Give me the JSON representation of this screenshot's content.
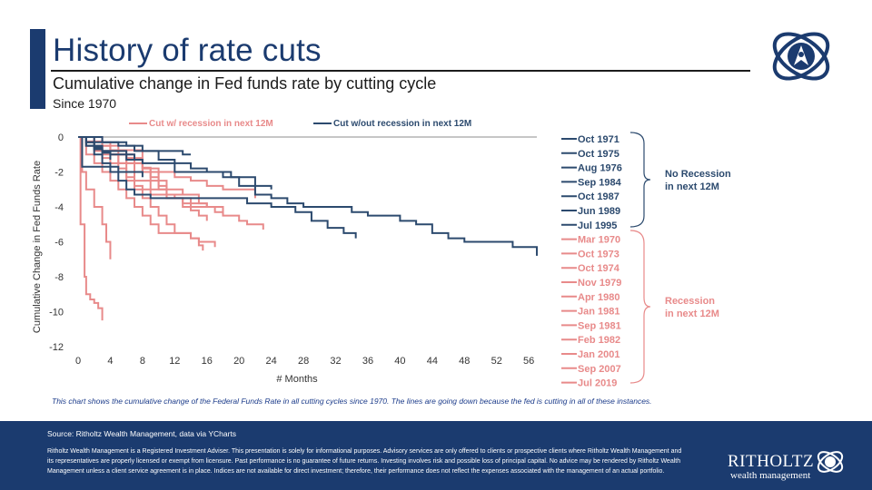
{
  "header": {
    "title": "History of rate cuts",
    "subtitle": "Cumulative change in Fed funds rate by cutting cycle",
    "since": "Since 1970"
  },
  "colors": {
    "navy": "#1b3b6f",
    "recession": "#e88a8a",
    "no_recession": "#2c4a6e",
    "zero_line": "#b4b4b4"
  },
  "chart_data": {
    "type": "line",
    "title": "History of rate cuts",
    "xlabel": "# Months",
    "ylabel": "Cumulative Change in Fed Funds Rate",
    "xlim": [
      0,
      57
    ],
    "ylim": [
      -12,
      0
    ],
    "xticks": [
      0,
      4,
      8,
      12,
      16,
      20,
      24,
      28,
      32,
      36,
      40,
      44,
      48,
      52,
      56
    ],
    "yticks": [
      0,
      -2,
      -4,
      -6,
      -8,
      -10,
      -12
    ],
    "legend": [
      {
        "label": "Cut w/ recession in next 12M",
        "group": "recession"
      },
      {
        "label": "Cut w/out recession in next 12M",
        "group": "no_recession"
      }
    ],
    "groups": {
      "no_recession": {
        "label": "No Recession in next 12M"
      },
      "recession": {
        "label": "Recession in next 12M"
      }
    },
    "series": [
      {
        "name": "Oct 1971",
        "group": "no_recession",
        "points": [
          [
            0,
            0
          ],
          [
            1,
            -0.3
          ],
          [
            2,
            -0.6
          ],
          [
            3,
            -0.9
          ],
          [
            4,
            -1.3
          ]
        ]
      },
      {
        "name": "Oct 1975",
        "group": "no_recession",
        "points": [
          [
            0,
            0
          ],
          [
            1,
            -0.3
          ],
          [
            2,
            -0.5
          ],
          [
            3,
            -0.8
          ],
          [
            4,
            -1.0
          ],
          [
            5,
            -1.0
          ],
          [
            6,
            -1.3
          ],
          [
            8,
            -1.5
          ],
          [
            10,
            -1.5
          ],
          [
            12,
            -2.0
          ],
          [
            16,
            -2.0
          ],
          [
            19,
            -2.3
          ],
          [
            22,
            -2.8
          ],
          [
            24,
            -3.0
          ]
        ]
      },
      {
        "name": "Aug 1976",
        "group": "no_recession",
        "points": [
          [
            0,
            0
          ],
          [
            0.5,
            -1.7
          ],
          [
            1,
            -1.7
          ],
          [
            4,
            -1.7
          ],
          [
            5,
            -2.0
          ],
          [
            7,
            -2.0
          ],
          [
            8,
            -2.3
          ]
        ]
      },
      {
        "name": "Sep 1984",
        "group": "no_recession",
        "points": [
          [
            0,
            0
          ],
          [
            1,
            -0.5
          ],
          [
            2,
            -1.0
          ],
          [
            3,
            -1.5
          ],
          [
            4,
            -2.0
          ],
          [
            5,
            -2.5
          ],
          [
            6,
            -3.0
          ],
          [
            7,
            -3.3
          ],
          [
            9,
            -3.5
          ],
          [
            12,
            -3.5
          ],
          [
            16,
            -3.5
          ],
          [
            18,
            -3.5
          ],
          [
            20,
            -3.5
          ],
          [
            21,
            -3.8
          ],
          [
            24,
            -4.0
          ],
          [
            27,
            -4.3
          ],
          [
            29,
            -4.8
          ],
          [
            31,
            -5.2
          ],
          [
            33,
            -5.5
          ],
          [
            34,
            -5.5
          ],
          [
            34.5,
            -5.8
          ]
        ]
      },
      {
        "name": "Oct 1987",
        "group": "no_recession",
        "points": [
          [
            0,
            0
          ],
          [
            1,
            -0.5
          ],
          [
            2,
            -0.7
          ],
          [
            3,
            -0.8
          ],
          [
            5,
            -0.8
          ],
          [
            6,
            -1.0
          ],
          [
            7,
            -1.3
          ],
          [
            8,
            -1.3
          ]
        ]
      },
      {
        "name": "Jun 1989",
        "group": "no_recession",
        "points": [
          [
            0,
            0
          ],
          [
            2,
            -0.3
          ],
          [
            4,
            -0.3
          ],
          [
            6,
            -0.5
          ],
          [
            8,
            -0.8
          ],
          [
            10,
            -1.3
          ],
          [
            12,
            -1.5
          ],
          [
            14,
            -1.8
          ],
          [
            16,
            -2.0
          ],
          [
            18,
            -2.3
          ],
          [
            20,
            -2.8
          ],
          [
            22,
            -3.3
          ],
          [
            24,
            -3.5
          ],
          [
            26,
            -3.8
          ],
          [
            28,
            -4.0
          ],
          [
            30,
            -4.0
          ],
          [
            32,
            -4.0
          ],
          [
            34,
            -4.3
          ],
          [
            36,
            -4.5
          ],
          [
            38,
            -4.5
          ],
          [
            40,
            -4.8
          ],
          [
            42,
            -5.0
          ],
          [
            44,
            -5.5
          ],
          [
            46,
            -5.8
          ],
          [
            48,
            -6.0
          ],
          [
            51,
            -6.0
          ],
          [
            54,
            -6.3
          ],
          [
            57,
            -6.5
          ],
          [
            57,
            -6.8
          ]
        ]
      },
      {
        "name": "Jul 1995",
        "group": "no_recession",
        "points": [
          [
            0,
            0
          ],
          [
            2,
            0
          ],
          [
            3,
            -0.3
          ],
          [
            5,
            -0.5
          ],
          [
            7,
            -0.8
          ],
          [
            10,
            -0.8
          ],
          [
            12,
            -0.8
          ],
          [
            13,
            -1.0
          ],
          [
            14,
            -1.0
          ]
        ]
      },
      {
        "name": "Mar 1970",
        "group": "recession",
        "points": [
          [
            0,
            0
          ],
          [
            2,
            -0.5
          ],
          [
            5,
            -1.0
          ],
          [
            7,
            -1.5
          ],
          [
            8,
            -2.0
          ],
          [
            9,
            -2.5
          ],
          [
            10,
            -3.0
          ],
          [
            11,
            -3.5
          ],
          [
            13,
            -3.8
          ],
          [
            14,
            -4.2
          ],
          [
            15,
            -4.5
          ],
          [
            16,
            -4.8
          ]
        ]
      },
      {
        "name": "Oct 1973",
        "group": "recession",
        "points": [
          [
            0,
            0
          ],
          [
            3,
            -0.3
          ],
          [
            4,
            -0.8
          ],
          [
            6,
            -1.2
          ],
          [
            8,
            -1.8
          ],
          [
            9,
            -2.3
          ],
          [
            10,
            -2.8
          ],
          [
            11,
            -3.3
          ],
          [
            12,
            -3.5
          ],
          [
            14,
            -3.8
          ],
          [
            16,
            -4.0
          ]
        ]
      },
      {
        "name": "Oct 1974",
        "group": "recession",
        "points": [
          [
            0,
            0
          ],
          [
            1,
            -0.5
          ],
          [
            2,
            -0.8
          ],
          [
            3,
            -1.2
          ],
          [
            4,
            -1.5
          ],
          [
            5,
            -1.8
          ],
          [
            6,
            -2.5
          ],
          [
            7,
            -3.0
          ],
          [
            8,
            -3.5
          ],
          [
            9,
            -4.0
          ],
          [
            10,
            -4.5
          ],
          [
            11,
            -5.0
          ],
          [
            12,
            -5.5
          ],
          [
            13,
            -5.5
          ],
          [
            14,
            -5.8
          ],
          [
            15,
            -6.2
          ],
          [
            15.5,
            -6.5
          ]
        ]
      },
      {
        "name": "Nov 1979",
        "group": "recession",
        "points": [
          [
            0,
            0
          ],
          [
            1,
            -0.3
          ],
          [
            2,
            -0.5
          ],
          [
            3,
            -0.8
          ],
          [
            4,
            -1.0
          ],
          [
            6,
            -1.5
          ],
          [
            8,
            -1.8
          ],
          [
            10,
            -2.0
          ],
          [
            12,
            -2.3
          ],
          [
            14,
            -2.5
          ],
          [
            16,
            -2.8
          ],
          [
            18,
            -3.0
          ],
          [
            20,
            -3.0
          ],
          [
            22,
            -3.5
          ]
        ]
      },
      {
        "name": "Apr 1980",
        "group": "recession",
        "points": [
          [
            0,
            0
          ],
          [
            0.5,
            -2.0
          ],
          [
            1,
            -3.0
          ],
          [
            2,
            -4.0
          ],
          [
            3,
            -5.0
          ],
          [
            3.5,
            -6.0
          ],
          [
            4,
            -6.0
          ],
          [
            4,
            -7.0
          ]
        ]
      },
      {
        "name": "Jan 1981",
        "group": "recession",
        "points": [
          [
            0,
            0
          ],
          [
            0.3,
            -5.0
          ],
          [
            0.8,
            -8.0
          ],
          [
            1,
            -9.0
          ],
          [
            1.5,
            -9.3
          ],
          [
            2,
            -9.5
          ],
          [
            2.5,
            -9.8
          ],
          [
            3,
            -10.0
          ],
          [
            3,
            -10.5
          ]
        ]
      },
      {
        "name": "Sep 1981",
        "group": "recession",
        "points": [
          [
            0,
            0
          ],
          [
            2,
            -0.5
          ],
          [
            4,
            -1.0
          ],
          [
            6,
            -1.5
          ],
          [
            8,
            -2.0
          ],
          [
            10,
            -2.5
          ],
          [
            11,
            -3.0
          ],
          [
            12,
            -3.0
          ],
          [
            13,
            -3.3
          ]
        ]
      },
      {
        "name": "Feb 1982",
        "group": "recession",
        "points": [
          [
            0,
            0
          ],
          [
            1,
            -0.5
          ],
          [
            3,
            -1.0
          ],
          [
            5,
            -1.5
          ],
          [
            7,
            -2.5
          ],
          [
            9,
            -3.0
          ],
          [
            11,
            -3.5
          ],
          [
            13,
            -4.0
          ],
          [
            16,
            -4.0
          ],
          [
            18,
            -4.5
          ],
          [
            20,
            -4.8
          ],
          [
            21,
            -5.0
          ],
          [
            22,
            -5.0
          ],
          [
            23,
            -5.3
          ]
        ]
      },
      {
        "name": "Jan 2001",
        "group": "recession",
        "points": [
          [
            0,
            0
          ],
          [
            1,
            -1.0
          ],
          [
            2,
            -1.5
          ],
          [
            3,
            -2.0
          ],
          [
            4,
            -2.5
          ],
          [
            5,
            -3.0
          ],
          [
            6,
            -3.5
          ],
          [
            7,
            -4.0
          ],
          [
            8,
            -4.5
          ],
          [
            9,
            -5.0
          ],
          [
            10,
            -5.5
          ],
          [
            13,
            -5.5
          ],
          [
            14,
            -5.8
          ],
          [
            15,
            -6.0
          ],
          [
            16,
            -6.0
          ],
          [
            17,
            -6.3
          ]
        ]
      },
      {
        "name": "Sep 2007",
        "group": "recession",
        "points": [
          [
            0,
            0
          ],
          [
            1,
            -0.5
          ],
          [
            2,
            -0.5
          ],
          [
            3,
            -0.8
          ],
          [
            4,
            -1.0
          ],
          [
            5,
            -1.5
          ],
          [
            6,
            -2.3
          ],
          [
            7,
            -2.8
          ],
          [
            8,
            -3.0
          ],
          [
            9,
            -3.3
          ],
          [
            10,
            -3.3
          ],
          [
            14,
            -3.3
          ],
          [
            15,
            -3.8
          ],
          [
            16,
            -4.0
          ],
          [
            17,
            -4.3
          ],
          [
            18,
            -4.5
          ]
        ]
      },
      {
        "name": "Jul 2019",
        "group": "recession",
        "points": [
          [
            0,
            0
          ],
          [
            1,
            -0.25
          ],
          [
            3,
            -0.5
          ],
          [
            4,
            -0.75
          ],
          [
            7,
            -0.75
          ],
          [
            8,
            -1.75
          ],
          [
            9,
            -2.0
          ],
          [
            10,
            -2.2
          ]
        ]
      }
    ]
  },
  "caption": "This chart shows the cumulative change of the Federal Funds Rate in all cutting cycles since 1970. The lines are going down because the fed is cutting in all of these instances.",
  "footer": {
    "source": "Source: Ritholtz Wealth Management, data via YCharts",
    "disclaimer": "Ritholtz Wealth Management is a Registered Investment Adviser. This presentation is solely for informational purposes. Advisory services are only offered to clients or prospective clients where Ritholtz Wealth Management and its representatives are properly licensed or exempt from licensure. Past performance is no guarantee of future returns. Investing involves risk and possible loss of principal capital. No advice may be rendered by Ritholtz Wealth Management unless a client service agreement is in place. Indices are not available for direct investment; therefore, their performance does not reflect the expenses associated with the management of an actual portfolio.",
    "brand_name": "RITHOLTZ",
    "brand_sub": "wealth management"
  }
}
